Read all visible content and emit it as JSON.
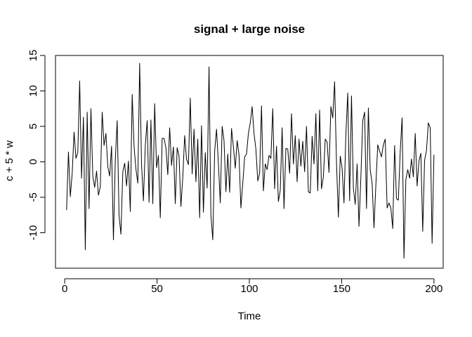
{
  "chart_data": {
    "type": "line",
    "title": "signal + large noise",
    "xlabel": "Time",
    "ylabel": "c + 5 * w",
    "xlim": [
      -5,
      205
    ],
    "ylim": [
      -15,
      15
    ],
    "x_ticks": [
      0,
      50,
      100,
      150,
      200
    ],
    "y_ticks": [
      -10,
      -5,
      0,
      5,
      10,
      15
    ],
    "x_tick_labels": [
      "0",
      "50",
      "100",
      "150",
      "200"
    ],
    "y_tick_labels": [
      "-10",
      "-5",
      "0",
      "5",
      "10",
      "15"
    ],
    "line_color": "#000000",
    "grid": false,
    "legend": "none",
    "x_start": 1,
    "x_end": 200,
    "values": [
      -6.8,
      1.4,
      -4.9,
      -1.6,
      4.2,
      0.5,
      1.3,
      11.4,
      -2.3,
      6.3,
      -12.4,
      7.0,
      -6.6,
      7.5,
      -2.0,
      -3.6,
      -1.3,
      -4.7,
      -3.5,
      7.0,
      2.3,
      4.0,
      -0.7,
      -2.0,
      2.2,
      -11.0,
      0.2,
      5.8,
      -7.6,
      -10.2,
      -1.4,
      -0.2,
      -3.4,
      0.1,
      -7.0,
      9.5,
      2.2,
      -1.0,
      -3.0,
      13.9,
      -0.4,
      -5.5,
      2.3,
      5.8,
      -5.7,
      5.9,
      -5.9,
      8.2,
      -0.8,
      0.9,
      -7.9,
      3.3,
      3.3,
      2.0,
      -1.8,
      4.8,
      -0.5,
      2.1,
      -5.9,
      2.0,
      0.8,
      -6.3,
      -2.2,
      3.7,
      0.4,
      -0.4,
      9.0,
      -1.7,
      4.6,
      -2.8,
      3.2,
      -7.9,
      5.1,
      -7.1,
      1.3,
      -3.7,
      13.4,
      -7.5,
      -11.0,
      1.5,
      4.6,
      -0.2,
      -5.8,
      5.0,
      3.0,
      -4.2,
      1.1,
      -4.3,
      4.7,
      2.1,
      -0.9,
      3.0,
      1.0,
      -6.5,
      -3.0,
      0.7,
      1.1,
      4.0,
      5.5,
      7.8,
      4.0,
      1.8,
      -2.7,
      -1.6,
      7.9,
      -4.1,
      -0.3,
      -1.1,
      0.9,
      0.5,
      7.5,
      -3.8,
      2.2,
      -5.6,
      -4.0,
      4.8,
      -6.6,
      1.9,
      1.8,
      -1.6,
      6.8,
      -0.3,
      3.7,
      -2.8,
      3.2,
      -0.6,
      2.9,
      -1.4,
      5.0,
      -4.2,
      -4.4,
      3.6,
      -0.3,
      6.8,
      -4.1,
      7.3,
      -3.8,
      -2.1,
      3.2,
      2.8,
      -1.5,
      7.8,
      6.2,
      11.3,
      -0.1,
      -7.8,
      0.8,
      -0.9,
      -5.8,
      3.9,
      9.7,
      -5.5,
      9.3,
      -3.7,
      -6.0,
      -0.3,
      -9.1,
      -2.2,
      5.8,
      7.0,
      -6.6,
      7.6,
      -1.2,
      -3.0,
      -9.3,
      -3.3,
      2.4,
      1.5,
      0.7,
      2.4,
      3.2,
      -6.5,
      -5.8,
      -6.5,
      -9.4,
      2.3,
      -5.2,
      -5.4,
      1.5,
      6.2,
      -13.6,
      -2.5,
      -1.1,
      -2.3,
      0.4,
      -2.1,
      4.0,
      -3.4,
      0.1,
      1.2,
      -9.8,
      0.2,
      1.6,
      5.5,
      4.8,
      -11.5,
      1.0
    ]
  }
}
